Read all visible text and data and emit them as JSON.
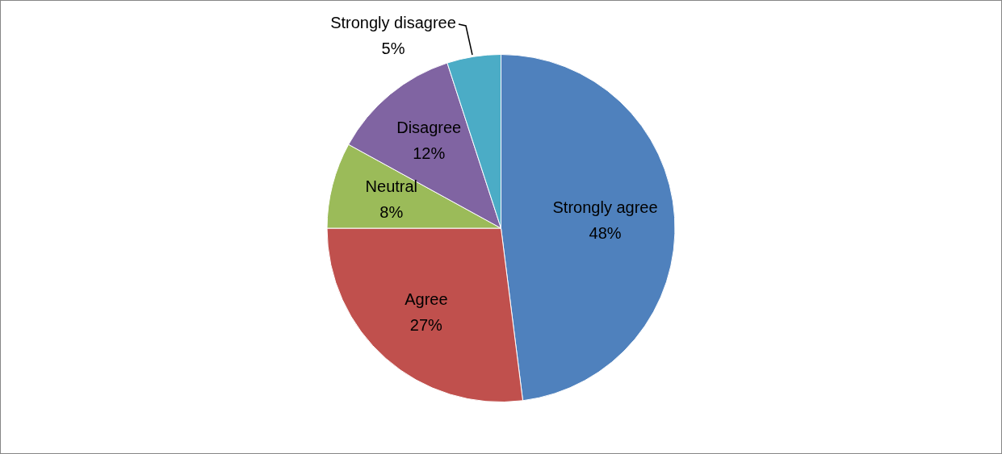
{
  "chart_data": {
    "type": "pie",
    "categories": [
      "Strongly agree",
      "Agree",
      "Neutral",
      "Disagree",
      "Strongly disagree"
    ],
    "values": [
      48,
      27,
      8,
      12,
      5
    ],
    "value_labels": [
      "48%",
      "27%",
      "8%",
      "12%",
      "5%"
    ],
    "colors": [
      "#4f81bd",
      "#c0504d",
      "#9bbb59",
      "#8064a2",
      "#4bacc6"
    ],
    "legend": false
  }
}
